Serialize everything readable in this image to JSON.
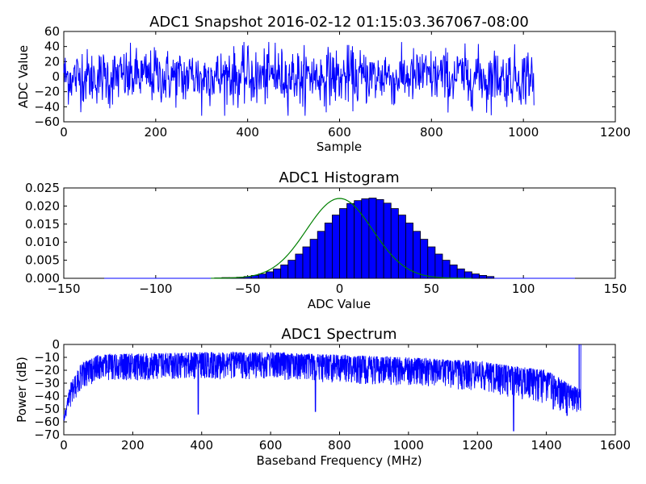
{
  "chart_data": [
    {
      "type": "line",
      "title": "ADC1 Snapshot 2016-02-12 01:15:03.367067-08:00",
      "xlabel": "Sample",
      "ylabel": "ADC Value",
      "xlim": [
        0,
        1200
      ],
      "ylim": [
        -60,
        60
      ],
      "xticks": [
        "0",
        "200",
        "400",
        "600",
        "800",
        "1000",
        "1200"
      ],
      "yticks": [
        "−60",
        "−40",
        "−20",
        "0",
        "20",
        "40",
        "60"
      ],
      "grid": false,
      "line_color": "#0000ff",
      "series": [
        {
          "x_start": 0,
          "x_end": 1023,
          "approx_std": 18,
          "approx_range": [
            -52,
            46
          ],
          "values_note_points": [
            [
              0,
              5
            ],
            [
              20,
              -8
            ],
            [
              40,
              30
            ],
            [
              60,
              -20
            ],
            [
              80,
              10
            ],
            [
              100,
              -42
            ],
            [
              120,
              15
            ],
            [
              140,
              -25
            ],
            [
              160,
              22
            ],
            [
              180,
              -10
            ],
            [
              200,
              35
            ],
            [
              220,
              -18
            ],
            [
              240,
              8
            ],
            [
              260,
              -30
            ],
            [
              280,
              25
            ],
            [
              300,
              -52
            ],
            [
              320,
              12
            ],
            [
              340,
              -22
            ],
            [
              360,
              28
            ],
            [
              380,
              -15
            ],
            [
              400,
              40
            ],
            [
              420,
              -35
            ],
            [
              440,
              10
            ],
            [
              460,
              45
            ],
            [
              480,
              -28
            ],
            [
              500,
              18
            ],
            [
              520,
              -40
            ],
            [
              540,
              20
            ],
            [
              560,
              -12
            ],
            [
              580,
              32
            ],
            [
              600,
              -24
            ],
            [
              620,
              42
            ],
            [
              640,
              -30
            ],
            [
              660,
              15
            ],
            [
              680,
              -18
            ],
            [
              700,
              26
            ],
            [
              720,
              -36
            ],
            [
              740,
              12
            ],
            [
              760,
              -20
            ],
            [
              780,
              30
            ],
            [
              800,
              -14
            ],
            [
              820,
              22
            ],
            [
              840,
              -26
            ],
            [
              860,
              18
            ],
            [
              880,
              -32
            ],
            [
              900,
              24
            ],
            [
              920,
              -48
            ],
            [
              940,
              28
            ],
            [
              960,
              -22
            ],
            [
              980,
              14
            ],
            [
              1000,
              -30
            ],
            [
              1010,
              32
            ],
            [
              1020,
              -20
            ],
            [
              1023,
              -38
            ]
          ]
        }
      ]
    },
    {
      "type": "bar",
      "title": "ADC1 Histogram",
      "xlabel": "ADC Value",
      "ylabel": "",
      "xlim": [
        -150,
        150
      ],
      "ylim": [
        0,
        0.025
      ],
      "xticks": [
        "−150",
        "−100",
        "−50",
        "0",
        "50",
        "100",
        "150"
      ],
      "yticks": [
        "0.000",
        "0.005",
        "0.010",
        "0.015",
        "0.020",
        "0.025"
      ],
      "grid": false,
      "bar_color": "#0000ff",
      "fit_color": "#008000",
      "bin_width": 4,
      "bin_start": -68,
      "values": [
        0.0001,
        0.0002,
        0.0002,
        0.0003,
        0.0005,
        0.0008,
        0.0012,
        0.0018,
        0.0026,
        0.0037,
        0.005,
        0.0067,
        0.0087,
        0.0108,
        0.013,
        0.0153,
        0.0175,
        0.0193,
        0.0207,
        0.0215,
        0.022,
        0.0222,
        0.0218,
        0.0208,
        0.0193,
        0.0175,
        0.0153,
        0.013,
        0.0108,
        0.0087,
        0.0067,
        0.005,
        0.0037,
        0.0026,
        0.0018,
        0.0012,
        0.0008,
        0.0005
      ],
      "fit": {
        "mean": 0,
        "std": 18,
        "peak": 0.0221
      }
    },
    {
      "type": "line",
      "title": "ADC1 Spectrum",
      "xlabel": "Baseband Frequency (MHz)",
      "ylabel": "Power (dB)",
      "xlim": [
        0,
        1600
      ],
      "ylim": [
        -70,
        0
      ],
      "xticks": [
        "0",
        "200",
        "400",
        "600",
        "800",
        "1000",
        "1200",
        "1400",
        "1600"
      ],
      "yticks": [
        "−70",
        "−60",
        "−50",
        "−40",
        "−30",
        "−20",
        "−10",
        "0"
      ],
      "grid": false,
      "line_color": "#0000ff",
      "series": [
        {
          "x_start": 0,
          "x_end": 1500,
          "envelope_top_points": [
            [
              0,
              -55
            ],
            [
              20,
              -30
            ],
            [
              50,
              -15
            ],
            [
              100,
              -8
            ],
            [
              200,
              -7
            ],
            [
              400,
              -6
            ],
            [
              600,
              -6
            ],
            [
              800,
              -8
            ],
            [
              1000,
              -10
            ],
            [
              1200,
              -13
            ],
            [
              1400,
              -20
            ],
            [
              1450,
              -28
            ],
            [
              1500,
              -35
            ]
          ],
          "envelope_bottom_points": [
            [
              0,
              -60
            ],
            [
              20,
              -48
            ],
            [
              50,
              -35
            ],
            [
              100,
              -28
            ],
            [
              200,
              -28
            ],
            [
              400,
              -27
            ],
            [
              600,
              -27
            ],
            [
              800,
              -30
            ],
            [
              1000,
              -32
            ],
            [
              1200,
              -36
            ],
            [
              1400,
              -46
            ],
            [
              1450,
              -55
            ],
            [
              1500,
              -52
            ]
          ],
          "deep_dips": [
            [
              390,
              -54
            ],
            [
              730,
              -52
            ],
            [
              1305,
              -67
            ],
            [
              1420,
              -50
            ],
            [
              1460,
              -55
            ]
          ],
          "spike": [
            1495,
            0
          ]
        }
      ]
    }
  ]
}
